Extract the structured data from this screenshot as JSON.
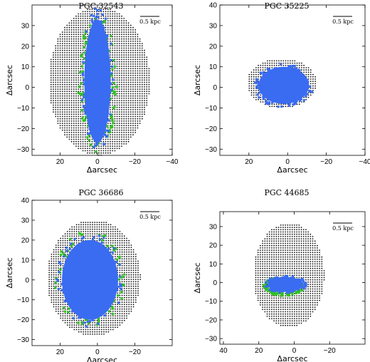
{
  "colors": {
    "grid_point": "#111111",
    "green": "#2ec21e",
    "blue": "#3a6cf2"
  },
  "chart_data": [
    {
      "type": "scatter",
      "title": "PGC 32543",
      "xlabel": "Δarcsec",
      "ylabel": "Δarcsec",
      "xlim": [
        35,
        -40
      ],
      "ylim": [
        -33,
        40
      ],
      "xticks": [
        20,
        0,
        -20,
        -40
      ],
      "yticks": [
        -30,
        -20,
        -10,
        0,
        10,
        20,
        30
      ],
      "scale_bar": "0.5 kpc",
      "series": [
        {
          "color": "#111111",
          "shape": {
            "kind": "ellipse",
            "center": [
              -1,
              3
            ],
            "radii": [
              27,
              36
            ]
          }
        },
        {
          "color": "#2ec21e",
          "shape": {
            "kind": "ellipse",
            "center": [
              0,
              2
            ],
            "radii": [
              10,
              32
            ]
          }
        },
        {
          "color": "#3a6cf2",
          "shape": {
            "kind": "ellipse",
            "center": [
              0,
              3
            ],
            "radii": [
              7,
              30
            ]
          }
        }
      ]
    },
    {
      "type": "scatter",
      "title": "PGC 35225",
      "xlabel": "Δarcsec",
      "ylabel": "Δarcsec",
      "xlim": [
        35,
        -40
      ],
      "ylim": [
        -33,
        40
      ],
      "xticks": [
        20,
        0,
        -20,
        -40
      ],
      "yticks": [
        -30,
        -20,
        -10,
        0,
        10,
        20,
        30,
        40
      ],
      "scale_bar": "0.5 kpc",
      "series": [
        {
          "color": "#111111",
          "shape": {
            "kind": "ellipse",
            "center": [
              3,
              2
            ],
            "radii": [
              18,
              12
            ]
          }
        },
        {
          "color": "#3a6cf2",
          "shape": {
            "kind": "ellipse",
            "center": [
              2,
              1
            ],
            "radii": [
              13,
              9
            ]
          }
        }
      ]
    },
    {
      "type": "scatter",
      "title": "PGC 36686",
      "xlabel": "Δarcsec",
      "ylabel": "Δarcsec",
      "xlim": [
        35,
        -40
      ],
      "ylim": [
        -33,
        40
      ],
      "xticks": [
        20,
        0,
        -20
      ],
      "yticks": [
        -30,
        -20,
        -10,
        0,
        10,
        20,
        30,
        40
      ],
      "scale_bar": "0.5 kpc",
      "series": [
        {
          "color": "#111111",
          "shape": {
            "kind": "ellipse",
            "center": [
              2,
              1
            ],
            "radii": [
              25,
              29
            ]
          }
        },
        {
          "color": "#2ec21e",
          "shape": {
            "kind": "ellipse",
            "center": [
              4,
              1
            ],
            "radii": [
              18,
              23
            ]
          }
        },
        {
          "color": "#3a6cf2",
          "shape": {
            "kind": "ellipse",
            "center": [
              4,
              0
            ],
            "radii": [
              15,
              20
            ]
          }
        }
      ]
    },
    {
      "type": "scatter",
      "title": "PGC 44685",
      "xlabel": "Δarcsec",
      "ylabel": "Δarcsec",
      "xlim": [
        42,
        -40
      ],
      "ylim": [
        -33,
        38
      ],
      "xticks": [
        40,
        20,
        0,
        -20
      ],
      "yticks": [
        -30,
        -20,
        -10,
        0,
        10,
        20,
        30
      ],
      "scale_bar": "0.5 kpc",
      "series": [
        {
          "color": "#111111",
          "shape": {
            "kind": "ellipse",
            "center": [
              3,
              4
            ],
            "radii": [
              20,
              28
            ]
          }
        },
        {
          "color": "#2ec21e",
          "shape": {
            "kind": "ellipse",
            "center": [
              6,
              -2
            ],
            "radii": [
              11,
              5
            ]
          }
        },
        {
          "color": "#3a6cf2",
          "shape": {
            "kind": "ellipse",
            "center": [
              5,
              -1
            ],
            "radii": [
              10,
              4
            ]
          }
        }
      ]
    }
  ]
}
